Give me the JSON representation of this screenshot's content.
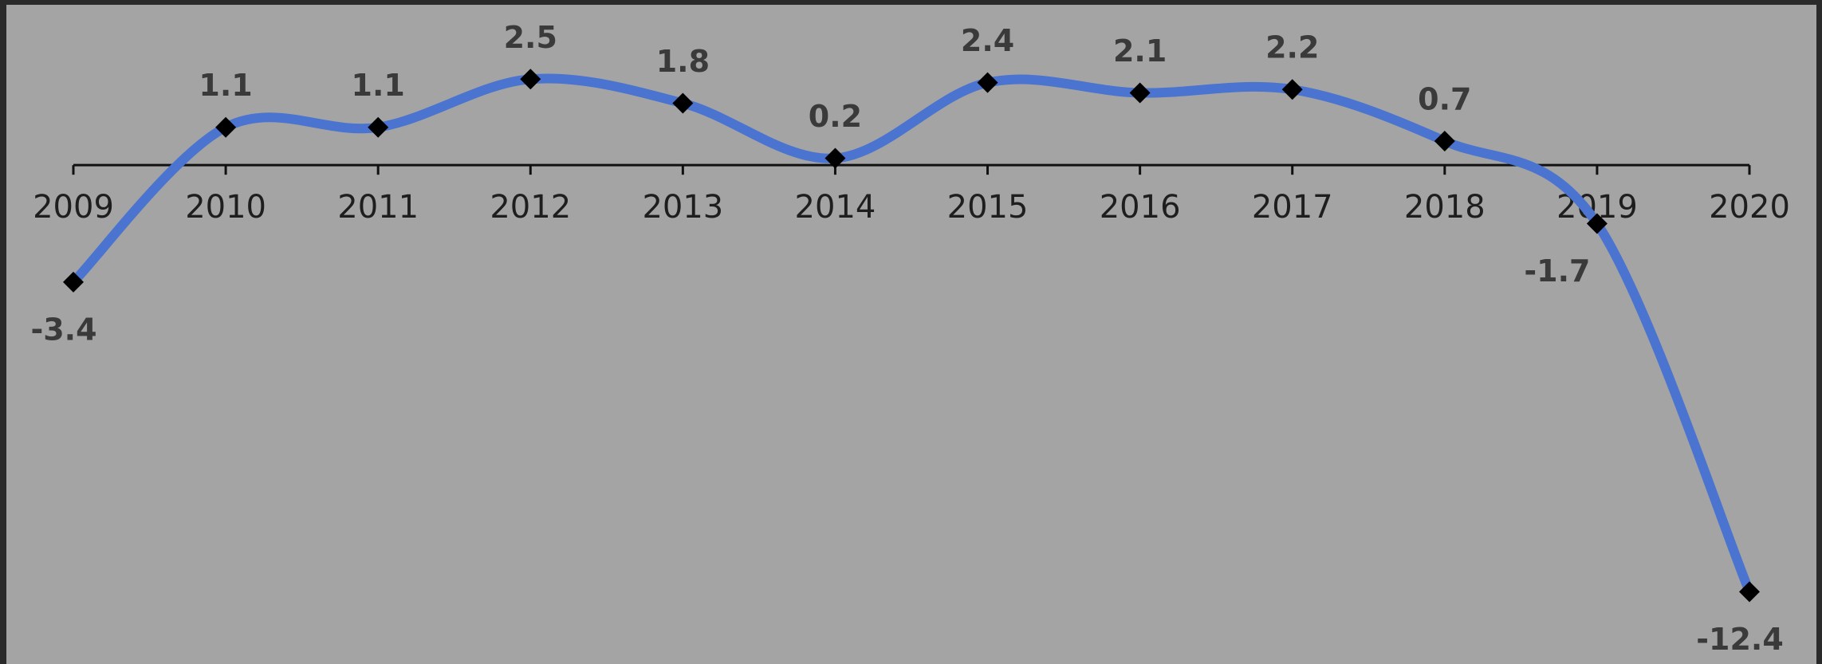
{
  "chart_data": {
    "type": "line",
    "x": [
      2009,
      2010,
      2011,
      2012,
      2013,
      2014,
      2015,
      2016,
      2017,
      2018,
      2019,
      2020
    ],
    "values": [
      -3.4,
      1.1,
      1.1,
      2.5,
      1.8,
      0.2,
      2.4,
      2.1,
      2.2,
      0.7,
      -1.7,
      -12.4
    ],
    "color": "#4a74d0",
    "marker_color": "#000000",
    "xlim": [
      2009,
      2020
    ],
    "xticks": [
      2009,
      2010,
      2011,
      2012,
      2013,
      2014,
      2015,
      2016,
      2017,
      2018,
      2019,
      2020
    ],
    "ylim": [
      -14.5,
      4.8
    ],
    "smooth": true
  }
}
